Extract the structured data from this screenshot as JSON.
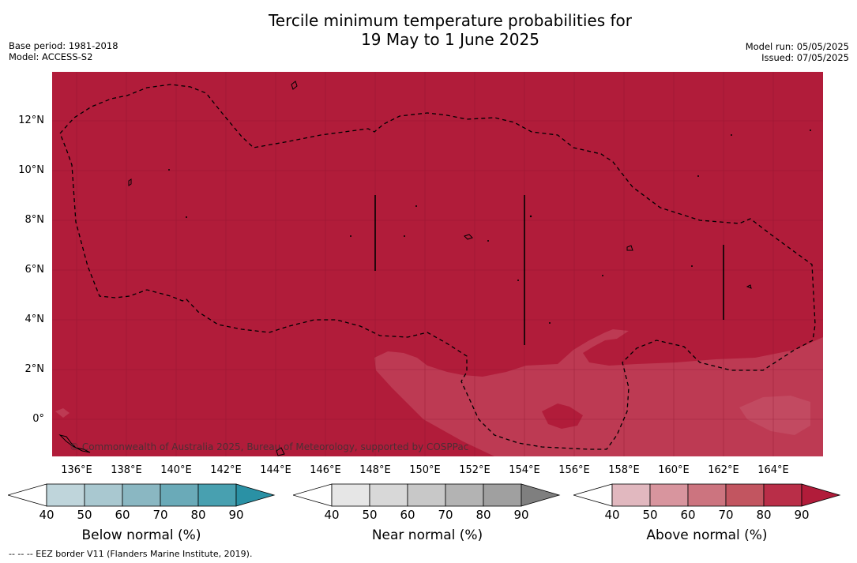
{
  "title": {
    "line1": "Tercile minimum temperature probabilities for",
    "line2": "19 May to 1 June 2025"
  },
  "meta_left": {
    "base_period": "Base period: 1981-2018",
    "model": "Model: ACCESS-S2"
  },
  "meta_right": {
    "model_run": "Model run: 05/05/2025",
    "issued": "Issued: 07/05/2025"
  },
  "map": {
    "lat_labels": [
      "12°N",
      "10°N",
      "8°N",
      "6°N",
      "4°N",
      "2°N",
      "0°"
    ],
    "lon_labels": [
      "136°E",
      "138°E",
      "140°E",
      "142°E",
      "144°E",
      "146°E",
      "148°E",
      "150°E",
      "152°E",
      "154°E",
      "156°E",
      "158°E",
      "160°E",
      "162°E",
      "164°E"
    ],
    "copyright": "© Commonwealth of Australia 2025, Bureau of Meteorology, supported by COSPPac",
    "dominant_category": "Above normal",
    "dominant_probability_band": "80-90",
    "secondary_probability_band": "70-80",
    "colors": {
      "above_80_90": "#b11c3a",
      "above_70_80": "#bd3a53"
    }
  },
  "colorbars": [
    {
      "label": "Below normal (%)",
      "ticks": [
        "40",
        "50",
        "60",
        "70",
        "80",
        "90"
      ],
      "colors": [
        "#bfd5db",
        "#a9c8d0",
        "#8ab7c2",
        "#6aaab8",
        "#48a0b0",
        "#2a91a5"
      ]
    },
    {
      "label": "Near normal (%)",
      "ticks": [
        "40",
        "50",
        "60",
        "70",
        "80",
        "90"
      ],
      "colors": [
        "#e6e6e6",
        "#d8d8d8",
        "#c8c8c8",
        "#b3b3b3",
        "#a0a0a0",
        "#7f7f7f"
      ]
    },
    {
      "label": "Above normal (%)",
      "ticks": [
        "40",
        "50",
        "60",
        "70",
        "80",
        "90"
      ],
      "colors": [
        "#e1b8bf",
        "#d8959e",
        "#cc747f",
        "#c25560",
        "#b92e48",
        "#b11c3a"
      ]
    }
  ],
  "footnote": "--  --  -- EEZ border V11 (Flanders Marine Institute, 2019)."
}
